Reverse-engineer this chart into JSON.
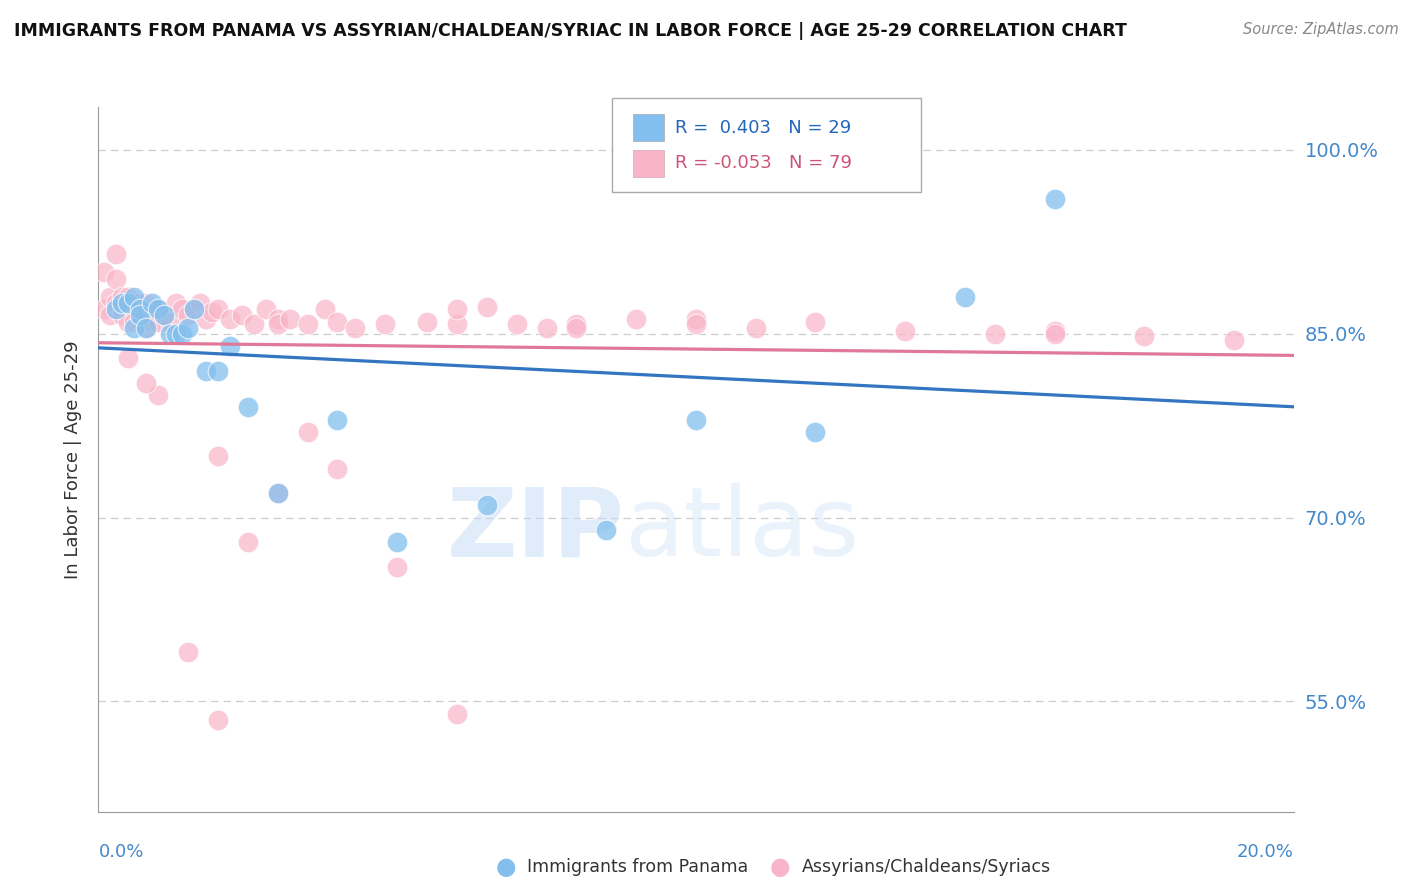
{
  "title": "IMMIGRANTS FROM PANAMA VS ASSYRIAN/CHALDEAN/SYRIAC IN LABOR FORCE | AGE 25-29 CORRELATION CHART",
  "source_text": "Source: ZipAtlas.com",
  "ylabel": "In Labor Force | Age 25-29",
  "right_yticks": [
    55.0,
    70.0,
    85.0,
    100.0
  ],
  "legend_blue_r": "R =  0.403",
  "legend_blue_n": "N = 29",
  "legend_pink_r": "R = -0.053",
  "legend_pink_n": "N = 79",
  "legend_label_blue": "Immigrants from Panama",
  "legend_label_pink": "Assyrians/Chaldeans/Syriacs",
  "blue_color": "#82bfee",
  "pink_color": "#f8b4c8",
  "blue_line_color": "#3375c0",
  "pink_line_color": "#e07898",
  "watermark_zip": "ZIP",
  "watermark_atlas": "atlas",
  "xmin": 0.0,
  "xmax": 0.2,
  "ymin": 0.46,
  "ymax": 1.035,
  "blue_scatter_x": [
    0.003,
    0.004,
    0.005,
    0.006,
    0.006,
    0.007,
    0.007,
    0.008,
    0.009,
    0.01,
    0.011,
    0.012,
    0.013,
    0.014,
    0.015,
    0.016,
    0.018,
    0.02,
    0.022,
    0.025,
    0.03,
    0.04,
    0.05,
    0.065,
    0.085,
    0.1,
    0.12,
    0.145,
    0.16
  ],
  "blue_scatter_y": [
    0.87,
    0.875,
    0.875,
    0.88,
    0.855,
    0.87,
    0.865,
    0.855,
    0.875,
    0.87,
    0.865,
    0.85,
    0.85,
    0.85,
    0.855,
    0.87,
    0.82,
    0.82,
    0.84,
    0.79,
    0.72,
    0.78,
    0.68,
    0.71,
    0.69,
    0.78,
    0.77,
    0.88,
    0.96
  ],
  "pink_scatter_x": [
    0.001,
    0.001,
    0.002,
    0.002,
    0.003,
    0.003,
    0.003,
    0.004,
    0.004,
    0.004,
    0.005,
    0.005,
    0.005,
    0.006,
    0.006,
    0.006,
    0.007,
    0.007,
    0.007,
    0.008,
    0.008,
    0.008,
    0.009,
    0.009,
    0.01,
    0.01,
    0.011,
    0.012,
    0.013,
    0.014,
    0.015,
    0.016,
    0.017,
    0.018,
    0.019,
    0.02,
    0.022,
    0.024,
    0.026,
    0.028,
    0.03,
    0.03,
    0.032,
    0.035,
    0.038,
    0.04,
    0.043,
    0.048,
    0.055,
    0.06,
    0.065,
    0.07,
    0.075,
    0.08,
    0.09,
    0.1,
    0.11,
    0.12,
    0.135,
    0.15,
    0.16,
    0.175,
    0.19,
    0.015,
    0.02,
    0.025,
    0.03,
    0.035,
    0.04,
    0.05,
    0.06,
    0.02,
    0.01,
    0.005,
    0.008,
    0.06,
    0.16,
    0.08,
    0.1
  ],
  "pink_scatter_y": [
    0.87,
    0.9,
    0.88,
    0.865,
    0.915,
    0.895,
    0.875,
    0.88,
    0.87,
    0.865,
    0.88,
    0.87,
    0.86,
    0.875,
    0.87,
    0.86,
    0.875,
    0.87,
    0.86,
    0.875,
    0.865,
    0.855,
    0.87,
    0.86,
    0.87,
    0.86,
    0.865,
    0.86,
    0.875,
    0.87,
    0.865,
    0.87,
    0.875,
    0.862,
    0.868,
    0.87,
    0.862,
    0.865,
    0.858,
    0.87,
    0.862,
    0.858,
    0.862,
    0.858,
    0.87,
    0.86,
    0.855,
    0.858,
    0.86,
    0.858,
    0.872,
    0.858,
    0.855,
    0.858,
    0.862,
    0.862,
    0.855,
    0.86,
    0.852,
    0.85,
    0.852,
    0.848,
    0.845,
    0.59,
    0.535,
    0.68,
    0.72,
    0.77,
    0.74,
    0.66,
    0.54,
    0.75,
    0.8,
    0.83,
    0.81,
    0.87,
    0.85,
    0.855,
    0.858
  ]
}
